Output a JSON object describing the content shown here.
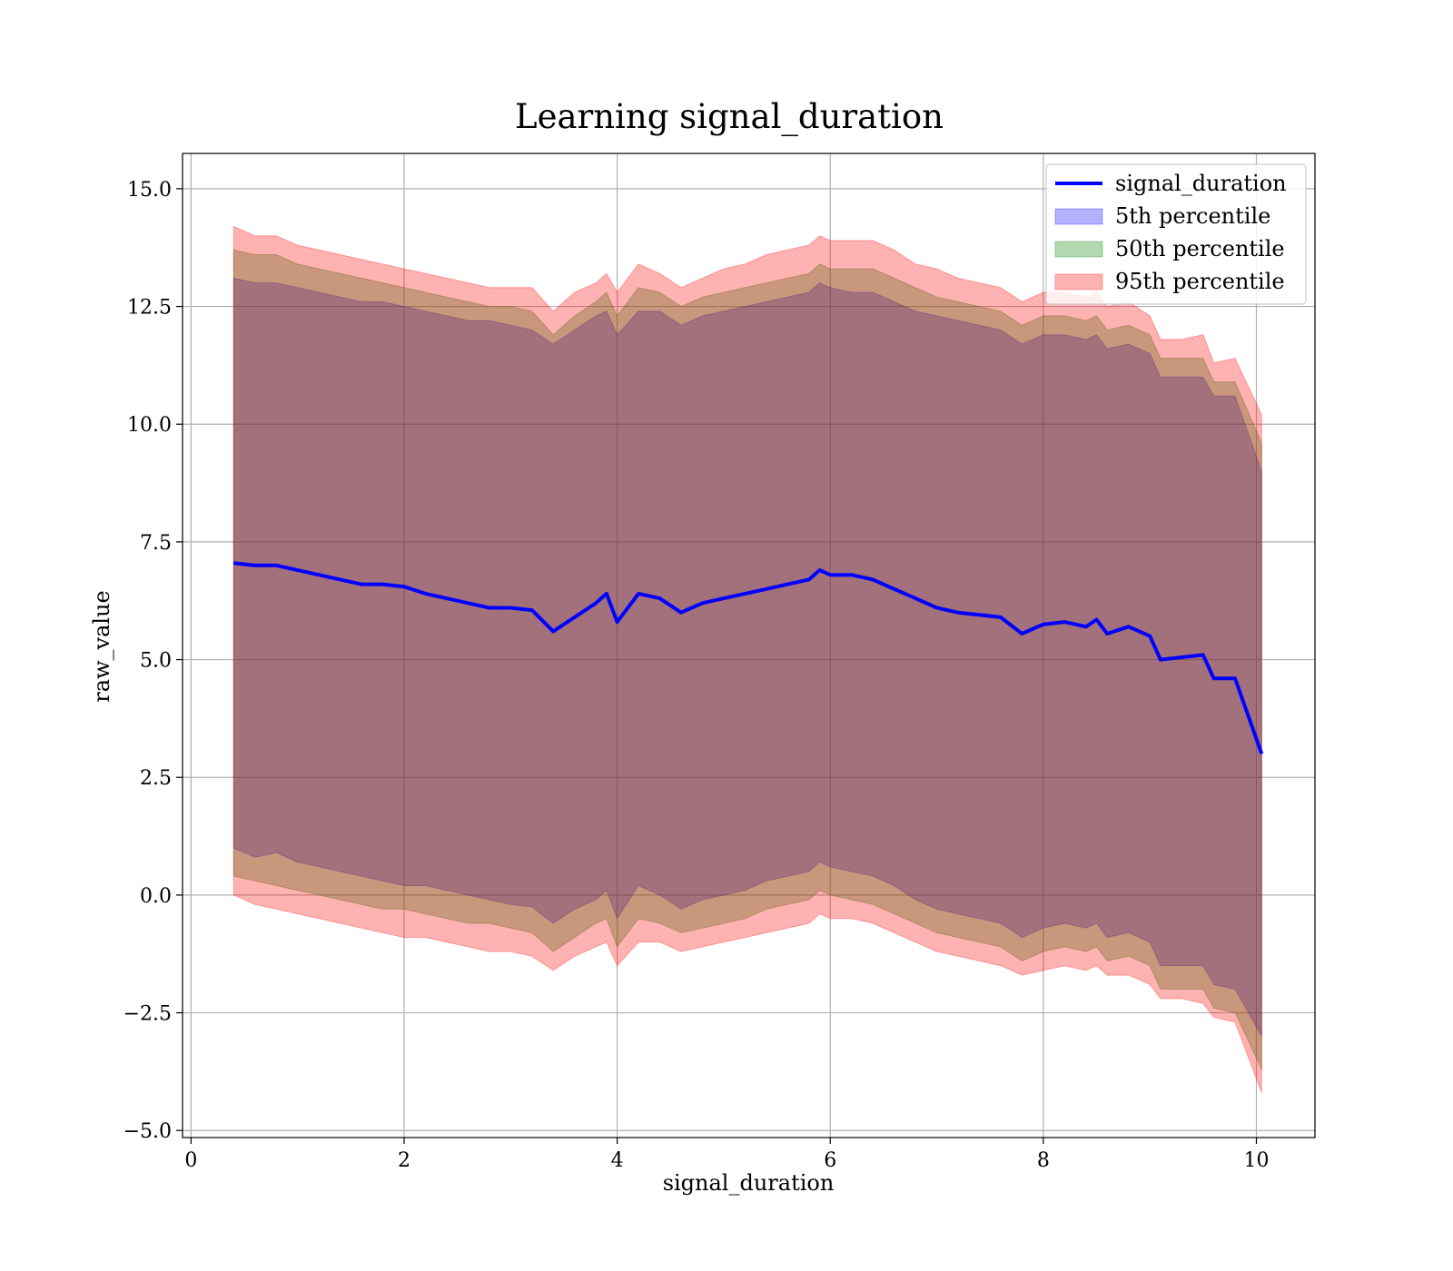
{
  "chart_data": {
    "type": "area",
    "title": "Learning signal_duration",
    "xlabel": "signal_duration",
    "ylabel": "raw_value",
    "xlim": [
      -0.08,
      10.55
    ],
    "ylim": [
      -5.15,
      15.75
    ],
    "xticks": [
      0,
      2,
      4,
      6,
      8,
      10
    ],
    "yticks": [
      -5.0,
      -2.5,
      0.0,
      2.5,
      5.0,
      7.5,
      10.0,
      12.5,
      15.0
    ],
    "xtick_labels": [
      "0",
      "2",
      "4",
      "6",
      "8",
      "10"
    ],
    "ytick_labels": [
      "−5.0",
      "−2.5",
      "0.0",
      "2.5",
      "5.0",
      "7.5",
      "10.0",
      "12.5",
      "15.0"
    ],
    "grid": true,
    "legend_position": "top-right",
    "legend": [
      {
        "label": "signal_duration",
        "kind": "line",
        "color": "#0000ff"
      },
      {
        "label": "5th percentile",
        "kind": "patch",
        "color": "#0000ff"
      },
      {
        "label": "50th percentile",
        "kind": "patch",
        "color": "#008000"
      },
      {
        "label": "95th percentile",
        "kind": "patch",
        "color": "#ff0000"
      }
    ],
    "x": [
      0.4,
      0.6,
      0.8,
      1.0,
      1.2,
      1.4,
      1.6,
      1.8,
      2.0,
      2.2,
      2.4,
      2.6,
      2.8,
      3.0,
      3.2,
      3.4,
      3.6,
      3.8,
      3.9,
      4.0,
      4.2,
      4.4,
      4.6,
      4.8,
      5.0,
      5.2,
      5.4,
      5.6,
      5.8,
      5.9,
      6.0,
      6.2,
      6.4,
      6.6,
      6.8,
      7.0,
      7.2,
      7.4,
      7.6,
      7.8,
      8.0,
      8.2,
      8.4,
      8.5,
      8.6,
      8.8,
      9.0,
      9.1,
      9.3,
      9.5,
      9.6,
      9.8,
      10.05
    ],
    "series": [
      {
        "name": "signal_duration",
        "color": "#0000ff",
        "values": [
          7.05,
          7.0,
          7.0,
          6.9,
          6.8,
          6.7,
          6.6,
          6.6,
          6.55,
          6.4,
          6.3,
          6.2,
          6.1,
          6.1,
          6.05,
          5.6,
          5.9,
          6.2,
          6.4,
          5.8,
          6.4,
          6.3,
          6.0,
          6.2,
          6.3,
          6.4,
          6.5,
          6.6,
          6.7,
          6.9,
          6.8,
          6.8,
          6.7,
          6.5,
          6.3,
          6.1,
          6.0,
          5.95,
          5.9,
          5.55,
          5.75,
          5.8,
          5.7,
          5.85,
          5.55,
          5.7,
          5.5,
          5.0,
          5.05,
          5.1,
          4.6,
          4.6,
          3.0
        ]
      },
      {
        "name": "5th percentile",
        "color": "#0000ff",
        "lower": [
          1.0,
          0.8,
          0.9,
          0.7,
          0.6,
          0.5,
          0.4,
          0.3,
          0.2,
          0.2,
          0.1,
          0.0,
          -0.1,
          -0.2,
          -0.25,
          -0.6,
          -0.3,
          -0.1,
          0.1,
          -0.5,
          0.2,
          0.0,
          -0.3,
          -0.1,
          0.0,
          0.1,
          0.3,
          0.4,
          0.5,
          0.7,
          0.6,
          0.5,
          0.4,
          0.2,
          -0.1,
          -0.3,
          -0.4,
          -0.5,
          -0.6,
          -0.9,
          -0.7,
          -0.6,
          -0.7,
          -0.6,
          -0.9,
          -0.8,
          -1.0,
          -1.5,
          -1.5,
          -1.5,
          -1.9,
          -2.0,
          -3.0
        ],
        "upper": [
          13.1,
          13.0,
          13.0,
          12.9,
          12.8,
          12.7,
          12.6,
          12.6,
          12.5,
          12.4,
          12.3,
          12.2,
          12.2,
          12.1,
          12.0,
          11.7,
          12.0,
          12.3,
          12.4,
          11.9,
          12.4,
          12.4,
          12.1,
          12.3,
          12.4,
          12.5,
          12.6,
          12.7,
          12.8,
          13.0,
          12.9,
          12.8,
          12.8,
          12.6,
          12.4,
          12.3,
          12.2,
          12.1,
          12.0,
          11.7,
          11.9,
          11.9,
          11.8,
          11.9,
          11.6,
          11.7,
          11.5,
          11.0,
          11.0,
          11.0,
          10.6,
          10.6,
          9.0
        ]
      },
      {
        "name": "50th percentile",
        "color": "#008000",
        "lower": [
          0.4,
          0.3,
          0.2,
          0.1,
          0.0,
          -0.1,
          -0.2,
          -0.3,
          -0.3,
          -0.4,
          -0.5,
          -0.6,
          -0.6,
          -0.7,
          -0.8,
          -1.2,
          -0.9,
          -0.6,
          -0.5,
          -1.1,
          -0.5,
          -0.6,
          -0.8,
          -0.7,
          -0.6,
          -0.5,
          -0.3,
          -0.2,
          -0.1,
          0.1,
          0.0,
          -0.1,
          -0.2,
          -0.4,
          -0.6,
          -0.8,
          -0.9,
          -1.0,
          -1.1,
          -1.4,
          -1.2,
          -1.1,
          -1.2,
          -1.1,
          -1.4,
          -1.3,
          -1.5,
          -2.0,
          -2.0,
          -2.0,
          -2.4,
          -2.5,
          -3.7
        ]
      },
      {
        "name": "95th percentile",
        "color": "#ff0000",
        "lower": [
          0.0,
          -0.2,
          -0.3,
          -0.4,
          -0.5,
          -0.6,
          -0.7,
          -0.8,
          -0.9,
          -0.9,
          -1.0,
          -1.1,
          -1.2,
          -1.2,
          -1.3,
          -1.6,
          -1.3,
          -1.1,
          -1.0,
          -1.5,
          -1.0,
          -1.0,
          -1.2,
          -1.1,
          -1.0,
          -0.9,
          -0.8,
          -0.7,
          -0.6,
          -0.4,
          -0.5,
          -0.5,
          -0.6,
          -0.8,
          -1.0,
          -1.2,
          -1.3,
          -1.4,
          -1.5,
          -1.7,
          -1.6,
          -1.5,
          -1.6,
          -1.5,
          -1.7,
          -1.7,
          -1.9,
          -2.2,
          -2.2,
          -2.3,
          -2.6,
          -2.7,
          -4.2
        ],
        "upper": [
          14.2,
          14.0,
          14.0,
          13.8,
          13.7,
          13.6,
          13.5,
          13.4,
          13.3,
          13.2,
          13.1,
          13.0,
          12.9,
          12.9,
          12.9,
          12.4,
          12.8,
          13.0,
          13.2,
          12.8,
          13.4,
          13.2,
          12.9,
          13.1,
          13.3,
          13.4,
          13.6,
          13.7,
          13.8,
          14.0,
          13.9,
          13.9,
          13.9,
          13.7,
          13.4,
          13.3,
          13.1,
          13.0,
          12.9,
          12.6,
          12.8,
          12.8,
          12.7,
          12.8,
          12.5,
          12.6,
          12.3,
          11.8,
          11.8,
          11.9,
          11.3,
          11.4,
          10.2
        ]
      }
    ],
    "median_upper": [
      13.7,
      13.6,
      13.6,
      13.4,
      13.3,
      13.2,
      13.1,
      13.0,
      12.9,
      12.8,
      12.7,
      12.6,
      12.5,
      12.5,
      12.4,
      11.9,
      12.3,
      12.6,
      12.8,
      12.3,
      12.9,
      12.8,
      12.5,
      12.7,
      12.8,
      12.9,
      13.0,
      13.1,
      13.2,
      13.4,
      13.3,
      13.3,
      13.3,
      13.1,
      12.9,
      12.7,
      12.6,
      12.5,
      12.4,
      12.1,
      12.3,
      12.3,
      12.2,
      12.3,
      12.0,
      12.1,
      11.9,
      11.4,
      11.4,
      11.4,
      10.9,
      10.9,
      9.6
    ]
  }
}
